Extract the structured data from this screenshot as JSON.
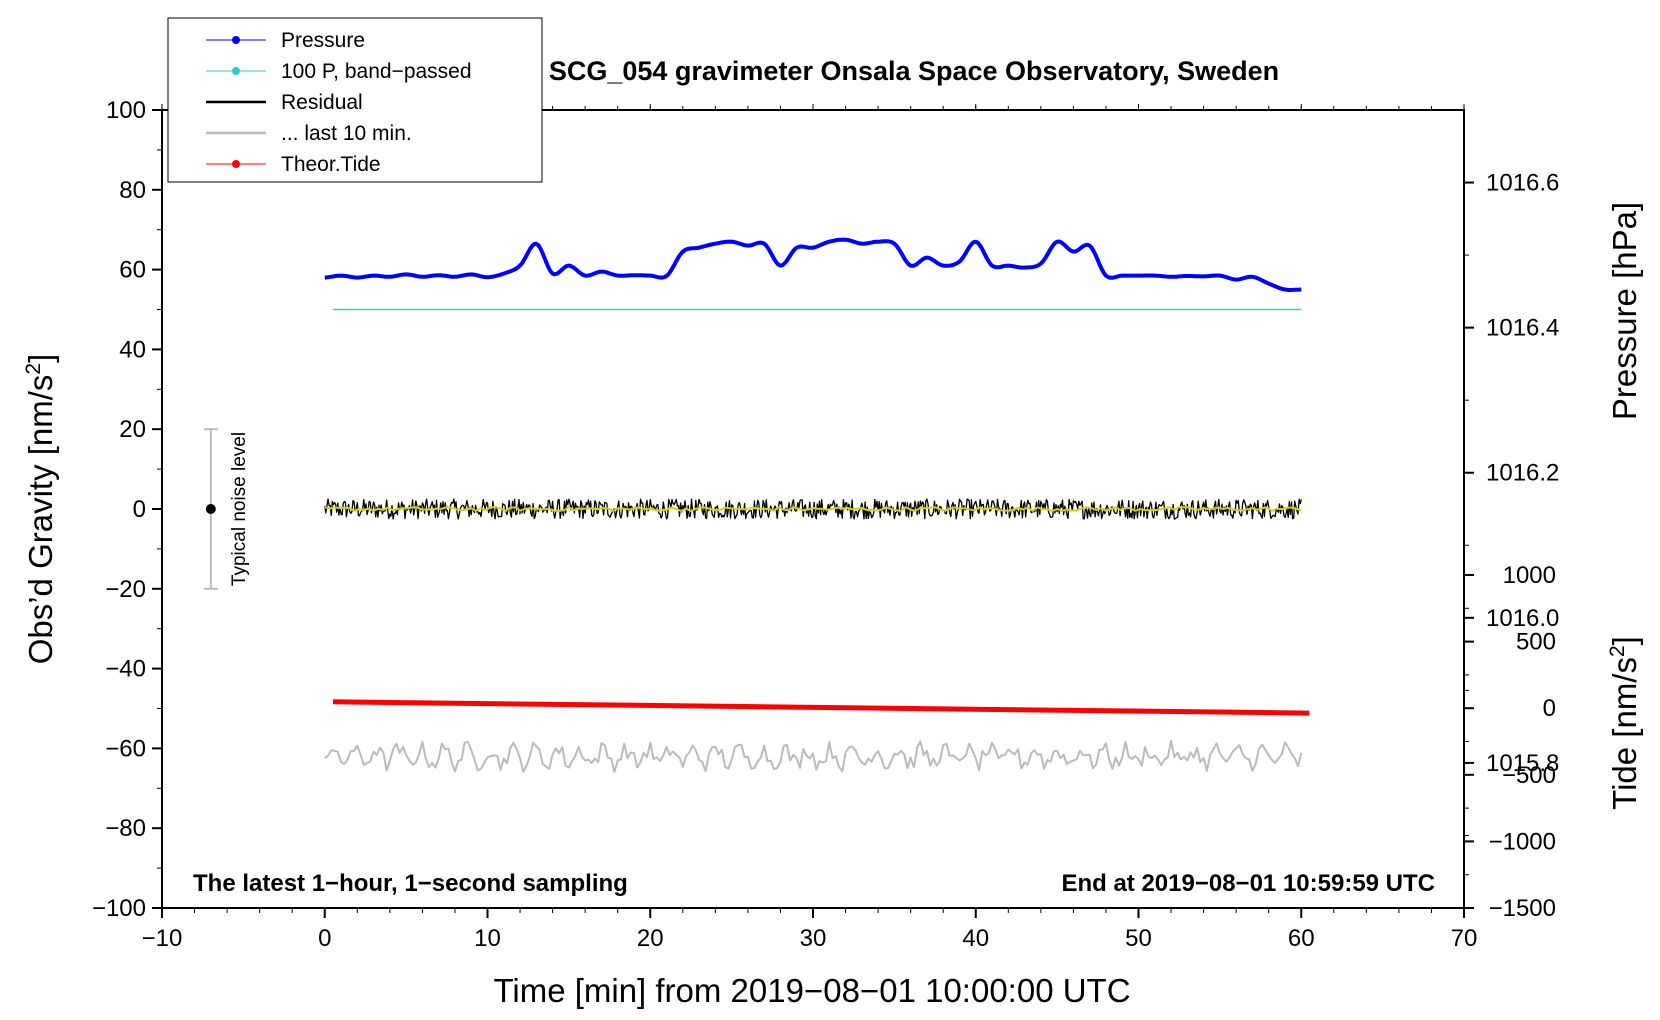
{
  "chart_data": {
    "type": "line",
    "title": "SCG_054 gravimeter Onsala Space Observatory, Sweden",
    "xlabel": "Time [min] from 2019−08−01 10:00:00 UTC",
    "ylabel_main": "Obs’d Gravity [nm/s",
    "ylabel_sup": "2",
    "ylabel_close": "]",
    "ylabel_pressure": "Pressure [hPa]",
    "ylabel_tide_main": "Tide [nm/s",
    "ylabel_tide_sup": "2",
    "ylabel_tide_close": "]",
    "xlim": [
      -10,
      70
    ],
    "ylim": [
      -100,
      100
    ],
    "x_ticks": [
      "−10",
      "0",
      "10",
      "20",
      "30",
      "40",
      "50",
      "60",
      "70"
    ],
    "y_ticks": [
      "−100",
      "−80",
      "−60",
      "−40",
      "−20",
      "0",
      "20",
      "40",
      "60",
      "80",
      "100"
    ],
    "pressure_axis": {
      "range": [
        1015.6,
        1016.7
      ],
      "ticks": [
        "1015.8",
        "1016.0",
        "1016.2",
        "1016.4",
        "1016.6"
      ]
    },
    "tide_axis": {
      "range": [
        -1500,
        1000
      ],
      "ticks": [
        "−1500",
        "−1000",
        "−500",
        "0",
        "500",
        "1000"
      ]
    },
    "annotation_left": "The latest 1−hour, 1−second sampling",
    "annotation_right": "End at 2019−08−01 10:59:59 UTC",
    "noise_bar": {
      "label": "Typical noise level",
      "x": -7,
      "center": 0,
      "range": [
        -20,
        20
      ]
    },
    "legend": [
      {
        "label": "Pressure",
        "color": "#0000ff",
        "marker": true
      },
      {
        "label": "100 P, band−passed",
        "color": "#33cccc",
        "marker": true
      },
      {
        "label": "Residual",
        "color": "#000000",
        "marker": false
      },
      {
        "label": "... last 10 min.",
        "color": "#bbbbbb",
        "marker": false
      },
      {
        "label": "Theor.Tide",
        "color": "#ff0000",
        "marker": true
      }
    ],
    "series": [
      {
        "name": "Pressure",
        "color": "#0000ff",
        "axis": "gravity",
        "x": [
          0,
          1,
          2,
          3,
          4,
          5,
          6,
          7,
          8,
          9,
          10,
          11,
          12,
          13,
          14,
          15,
          16,
          17,
          18,
          19,
          20,
          21,
          22,
          23,
          24,
          25,
          26,
          27,
          28,
          29,
          30,
          31,
          32,
          33,
          34,
          35,
          36,
          37,
          38,
          39,
          40,
          41,
          42,
          43,
          44,
          45,
          46,
          47,
          48,
          49,
          50,
          51,
          52,
          53,
          54,
          55,
          56,
          57,
          58,
          59,
          60
        ],
        "values": [
          58,
          58.5,
          58,
          58.5,
          58.2,
          58.8,
          58.2,
          58.6,
          58.2,
          58.8,
          58.1,
          59,
          61,
          66.5,
          59,
          61,
          58.5,
          59.5,
          58.5,
          58.6,
          58.5,
          58.4,
          64.5,
          65.5,
          66.5,
          67,
          66,
          66.5,
          61,
          65.5,
          65.5,
          67,
          67.5,
          66.5,
          67,
          66.5,
          61,
          63,
          61,
          62,
          67,
          61,
          61,
          60.5,
          61.5,
          67,
          64.5,
          66,
          58.5,
          58.5,
          58.5,
          58.5,
          58.2,
          58.4,
          58.3,
          58.5,
          57.5,
          58.2,
          56.5,
          55,
          55
        ]
      },
      {
        "name": "100 P, band−passed",
        "color": "#33cccc",
        "axis": "gravity",
        "x": [
          0.5,
          60
        ],
        "values": [
          50,
          50
        ]
      },
      {
        "name": "Residual",
        "color": "#000000",
        "axis": "gravity",
        "x_range": [
          0,
          60
        ],
        "mean": 0,
        "amplitude": 2.5,
        "samples": 900
      },
      {
        "name": "Residual smoothed",
        "color": "#d4d400",
        "axis": "gravity",
        "x_range": [
          0,
          60
        ],
        "mean": 0,
        "amplitude": 0.5,
        "samples": 200
      },
      {
        "name": "... last 10 min.",
        "color": "#bbbbbb",
        "axis": "gravity",
        "x_range": [
          0,
          60
        ],
        "mean": -62,
        "amplitude": 3,
        "samples": 300
      },
      {
        "name": "Theor.Tide",
        "color": "#ff0000",
        "axis": "tide",
        "x": [
          0.5,
          60.5
        ],
        "values": [
          48,
          -37
        ]
      }
    ]
  }
}
